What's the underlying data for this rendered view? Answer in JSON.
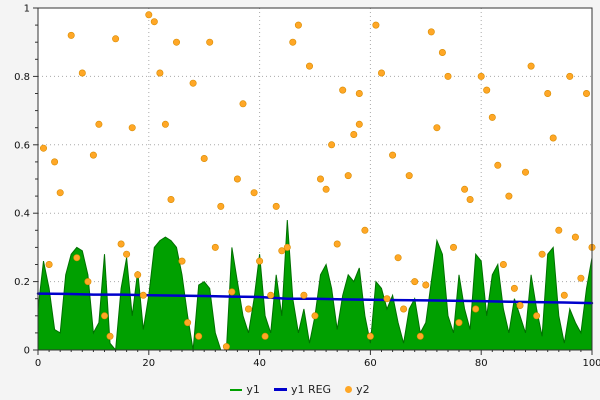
{
  "chart_data": {
    "type": "mixed",
    "x_axis": {
      "min": 0,
      "max": 100,
      "ticks": [
        0,
        20,
        40,
        60,
        80,
        100
      ],
      "tick_labels": [
        "0",
        "20",
        "40",
        "60",
        "80",
        "100"
      ],
      "minor_step": 2
    },
    "y_axis": {
      "min": 0,
      "max": 1,
      "ticks": [
        0,
        0.2,
        0.4,
        0.6,
        0.8,
        1
      ],
      "tick_labels": [
        "0",
        "0.2",
        "0.4",
        "0.6",
        "0.8",
        "1"
      ],
      "minor_step": 0.05
    },
    "grid": true,
    "legend_position": "bottom",
    "plot_bg": "#ffffff",
    "outer_bg": "#f4f4f4",
    "grid_color": "#aaaaaa",
    "frame_color": "#333333",
    "series": [
      {
        "name": "y1",
        "type": "area",
        "color": "#00A000",
        "edge_color": "#007000",
        "x_start": 0,
        "x_step": 1,
        "values": [
          0.12,
          0.26,
          0.18,
          0.06,
          0.05,
          0.22,
          0.28,
          0.3,
          0.29,
          0.22,
          0.05,
          0.08,
          0.28,
          0.02,
          0.0,
          0.18,
          0.27,
          0.1,
          0.23,
          0.06,
          0.16,
          0.3,
          0.32,
          0.33,
          0.32,
          0.3,
          0.22,
          0.1,
          0.0,
          0.19,
          0.2,
          0.18,
          0.05,
          0.0,
          0.0,
          0.3,
          0.2,
          0.1,
          0.05,
          0.15,
          0.28,
          0.1,
          0.05,
          0.22,
          0.1,
          0.38,
          0.15,
          0.05,
          0.12,
          0.02,
          0.1,
          0.22,
          0.25,
          0.18,
          0.06,
          0.16,
          0.22,
          0.2,
          0.24,
          0.1,
          0.02,
          0.2,
          0.18,
          0.12,
          0.16,
          0.08,
          0.02,
          0.12,
          0.15,
          0.05,
          0.08,
          0.2,
          0.32,
          0.28,
          0.1,
          0.05,
          0.22,
          0.12,
          0.06,
          0.28,
          0.26,
          0.1,
          0.22,
          0.25,
          0.12,
          0.05,
          0.15,
          0.1,
          0.05,
          0.22,
          0.12,
          0.04,
          0.28,
          0.3,
          0.1,
          0.02,
          0.12,
          0.08,
          0.05,
          0.18,
          0.27
        ]
      },
      {
        "name": "y1 REG",
        "type": "line",
        "color": "#0000CC",
        "points": [
          [
            0,
            0.165
          ],
          [
            5,
            0.164
          ],
          [
            10,
            0.162
          ],
          [
            15,
            0.162
          ],
          [
            20,
            0.16
          ],
          [
            25,
            0.159
          ],
          [
            30,
            0.158
          ],
          [
            35,
            0.156
          ],
          [
            40,
            0.155
          ],
          [
            45,
            0.15
          ],
          [
            50,
            0.15
          ],
          [
            55,
            0.148
          ],
          [
            60,
            0.147
          ],
          [
            65,
            0.146
          ],
          [
            70,
            0.145
          ],
          [
            75,
            0.144
          ],
          [
            80,
            0.143
          ],
          [
            85,
            0.141
          ],
          [
            90,
            0.14
          ],
          [
            95,
            0.139
          ],
          [
            100,
            0.137
          ]
        ]
      },
      {
        "name": "y2",
        "type": "scatter",
        "color": "#FFA726",
        "edge_color": "#D98C00",
        "points": [
          [
            1,
            0.59
          ],
          [
            2,
            0.25
          ],
          [
            3,
            0.55
          ],
          [
            4,
            0.46
          ],
          [
            6,
            0.92
          ],
          [
            7,
            0.27
          ],
          [
            8,
            0.81
          ],
          [
            9,
            0.2
          ],
          [
            10,
            0.57
          ],
          [
            11,
            0.66
          ],
          [
            12,
            0.1
          ],
          [
            13,
            0.04
          ],
          [
            14,
            0.91
          ],
          [
            15,
            0.31
          ],
          [
            16,
            0.28
          ],
          [
            17,
            0.65
          ],
          [
            18,
            0.22
          ],
          [
            19,
            0.16
          ],
          [
            20,
            0.98
          ],
          [
            21,
            0.96
          ],
          [
            22,
            0.81
          ],
          [
            23,
            0.66
          ],
          [
            24,
            0.44
          ],
          [
            25,
            0.9
          ],
          [
            26,
            0.26
          ],
          [
            27,
            0.08
          ],
          [
            28,
            0.78
          ],
          [
            29,
            0.04
          ],
          [
            30,
            0.56
          ],
          [
            31,
            0.9
          ],
          [
            32,
            0.3
          ],
          [
            33,
            0.42
          ],
          [
            34,
            0.01
          ],
          [
            35,
            0.17
          ],
          [
            36,
            0.5
          ],
          [
            37,
            0.72
          ],
          [
            38,
            0.12
          ],
          [
            39,
            0.46
          ],
          [
            40,
            0.26
          ],
          [
            41,
            0.04
          ],
          [
            42,
            0.16
          ],
          [
            43,
            0.42
          ],
          [
            44,
            0.29
          ],
          [
            45,
            0.3
          ],
          [
            46,
            0.9
          ],
          [
            47,
            0.95
          ],
          [
            48,
            0.16
          ],
          [
            49,
            0.83
          ],
          [
            50,
            0.1
          ],
          [
            51,
            0.5
          ],
          [
            52,
            0.47
          ],
          [
            53,
            0.6
          ],
          [
            54,
            0.31
          ],
          [
            55,
            0.76
          ],
          [
            56,
            0.51
          ],
          [
            57,
            0.63
          ],
          [
            58,
            0.66
          ],
          [
            58,
            0.75
          ],
          [
            59,
            0.35
          ],
          [
            60,
            0.04
          ],
          [
            61,
            0.95
          ],
          [
            62,
            0.81
          ],
          [
            63,
            0.15
          ],
          [
            64,
            0.57
          ],
          [
            65,
            0.27
          ],
          [
            66,
            0.12
          ],
          [
            67,
            0.51
          ],
          [
            68,
            0.2
          ],
          [
            69,
            0.04
          ],
          [
            70,
            0.19
          ],
          [
            71,
            0.93
          ],
          [
            72,
            0.65
          ],
          [
            73,
            0.87
          ],
          [
            74,
            0.8
          ],
          [
            75,
            0.3
          ],
          [
            76,
            0.08
          ],
          [
            77,
            0.47
          ],
          [
            78,
            0.44
          ],
          [
            79,
            0.12
          ],
          [
            80,
            0.8
          ],
          [
            81,
            0.76
          ],
          [
            82,
            0.68
          ],
          [
            83,
            0.54
          ],
          [
            84,
            0.25
          ],
          [
            85,
            0.45
          ],
          [
            86,
            0.18
          ],
          [
            87,
            0.13
          ],
          [
            88,
            0.52
          ],
          [
            89,
            0.83
          ],
          [
            90,
            0.1
          ],
          [
            91,
            0.28
          ],
          [
            92,
            0.75
          ],
          [
            93,
            0.62
          ],
          [
            94,
            0.35
          ],
          [
            95,
            0.16
          ],
          [
            96,
            0.8
          ],
          [
            97,
            0.33
          ],
          [
            98,
            0.21
          ],
          [
            99,
            0.75
          ],
          [
            100,
            0.3
          ]
        ]
      }
    ]
  },
  "legend": {
    "items": [
      {
        "label": "y1"
      },
      {
        "label": "y1 REG"
      },
      {
        "label": "y2"
      }
    ]
  }
}
